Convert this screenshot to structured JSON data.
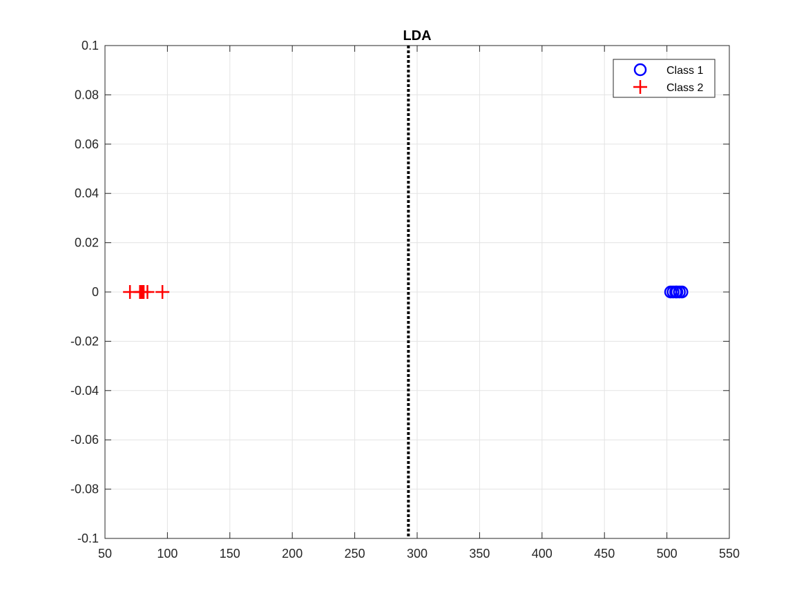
{
  "chart_data": {
    "type": "scatter",
    "title": "LDA",
    "xlabel": "",
    "ylabel": "",
    "xlim": [
      50,
      550
    ],
    "ylim": [
      -0.1,
      0.1
    ],
    "xticks": [
      50,
      100,
      150,
      200,
      250,
      300,
      350,
      400,
      450,
      500,
      550
    ],
    "xtick_labels": [
      "50",
      "100",
      "150",
      "200",
      "250",
      "300",
      "350",
      "400",
      "450",
      "500",
      "550"
    ],
    "yticks": [
      -0.1,
      -0.08,
      -0.06,
      -0.04,
      -0.02,
      0,
      0.02,
      0.04,
      0.06,
      0.08,
      0.1
    ],
    "ytick_labels": [
      "-0.1",
      "-0.08",
      "-0.06",
      "-0.04",
      "-0.02",
      "0",
      "0.02",
      "0.04",
      "0.06",
      "0.08",
      "0.1"
    ],
    "grid": true,
    "legend_position": "top-right",
    "series": [
      {
        "name": "Class 1",
        "marker": "circle",
        "color": "#0000ff",
        "x": [
          503,
          505,
          507,
          508,
          510,
          512
        ],
        "y": [
          0,
          0,
          0,
          0,
          0,
          0
        ]
      },
      {
        "name": "Class 2",
        "marker": "plus",
        "color": "#ff0000",
        "x": [
          70,
          78,
          79,
          80,
          81,
          84,
          96
        ],
        "y": [
          0,
          0,
          0,
          0,
          0,
          0,
          0
        ]
      }
    ],
    "threshold_line": {
      "x": 293,
      "style": "dotted",
      "color": "#000000"
    }
  }
}
